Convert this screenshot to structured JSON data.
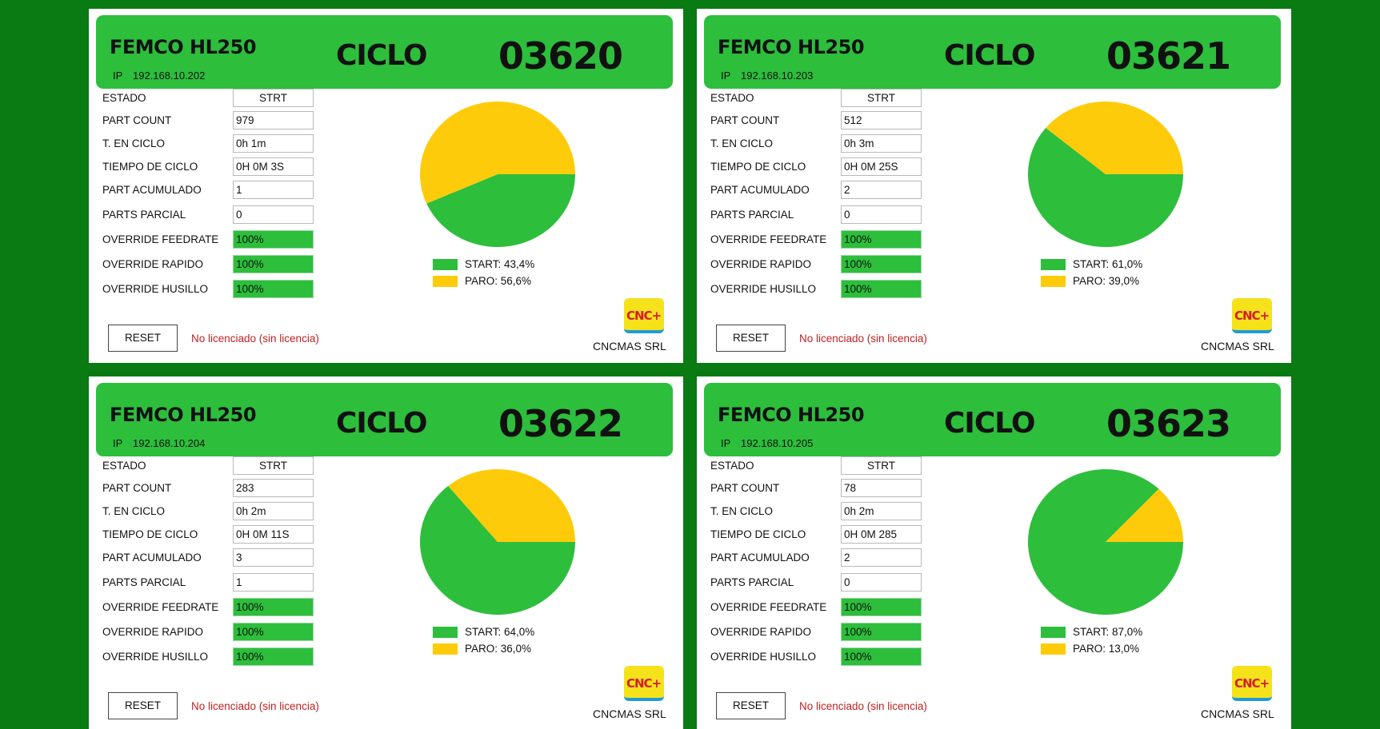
{
  "labels": {
    "estado": "ESTADO",
    "part_count": "PART COUNT",
    "t_en_ciclo": "T. EN CICLO",
    "tiempo_de_ciclo": "TIEMPO DE CICLO",
    "part_acumulado": "PART ACUMULADO",
    "parts_parcial": "PARTS PARCIAL",
    "override_feedrate": "OVERRIDE FEEDRATE",
    "override_rapido": "OVERRIDE RAPIDO",
    "override_husillo": "OVERRIDE HUSILLO",
    "ip": "IP",
    "ciclo": "CICLO",
    "reset": "RESET",
    "license": "No licenciado (sin licencia)",
    "company": "CNCMAS SRL",
    "logo": "CNC+"
  },
  "colors": {
    "background": "#0a7a12",
    "header_green": "#2dbe3c",
    "start_green": "#2dbe3c",
    "paro_yellow": "#fdcb0a",
    "license_red": "#c42020"
  },
  "machines": [
    {
      "name": "FEMCO HL250",
      "ip": "192.168.10.202",
      "ciclo": "03620",
      "estado": "STRT",
      "part_count": "979",
      "t_en_ciclo": "0h 1m",
      "tiempo_de_ciclo": "0H 0M 3S",
      "part_acumulado": "1",
      "parts_parcial": "0",
      "override_feedrate": "100%",
      "override_rapido": "100%",
      "override_husillo": "100%",
      "chart_data": {
        "type": "pie",
        "slices": [
          {
            "label": "START",
            "value": 43.4,
            "color": "#2dbe3c"
          },
          {
            "label": "PARO",
            "value": 56.6,
            "color": "#fdcb0a"
          }
        ],
        "legend": [
          "START: 43,4%",
          "PARO: 56,6%"
        ]
      }
    },
    {
      "name": "FEMCO HL250",
      "ip": "192.168.10.203",
      "ciclo": "03621",
      "estado": "STRT",
      "part_count": "512",
      "t_en_ciclo": "0h 3m",
      "tiempo_de_ciclo": "0H 0M 25S",
      "part_acumulado": "2",
      "parts_parcial": "0",
      "override_feedrate": "100%",
      "override_rapido": "100%",
      "override_husillo": "100%",
      "chart_data": {
        "type": "pie",
        "slices": [
          {
            "label": "START",
            "value": 61.0,
            "color": "#2dbe3c"
          },
          {
            "label": "PARO",
            "value": 39.0,
            "color": "#fdcb0a"
          }
        ],
        "legend": [
          "START: 61,0%",
          "PARO: 39,0%"
        ]
      }
    },
    {
      "name": "FEMCO HL250",
      "ip": "192.168.10.204",
      "ciclo": "03622",
      "estado": "STRT",
      "part_count": "283",
      "t_en_ciclo": "0h 2m",
      "tiempo_de_ciclo": "0H 0M 11S",
      "part_acumulado": "3",
      "parts_parcial": "1",
      "override_feedrate": "100%",
      "override_rapido": "100%",
      "override_husillo": "100%",
      "chart_data": {
        "type": "pie",
        "slices": [
          {
            "label": "START",
            "value": 64.0,
            "color": "#2dbe3c"
          },
          {
            "label": "PARO",
            "value": 36.0,
            "color": "#fdcb0a"
          }
        ],
        "legend": [
          "START: 64,0%",
          "PARO: 36,0%"
        ]
      }
    },
    {
      "name": "FEMCO HL250",
      "ip": "192.168.10.205",
      "ciclo": "03623",
      "estado": "STRT",
      "part_count": "78",
      "t_en_ciclo": "0h 2m",
      "tiempo_de_ciclo": "0H 0M 285",
      "part_acumulado": "2",
      "parts_parcial": "0",
      "override_feedrate": "100%",
      "override_rapido": "100%",
      "override_husillo": "100%",
      "chart_data": {
        "type": "pie",
        "slices": [
          {
            "label": "START",
            "value": 87.0,
            "color": "#2dbe3c"
          },
          {
            "label": "PARO",
            "value": 13.0,
            "color": "#fdcb0a"
          }
        ],
        "legend": [
          "START: 87,0%",
          "PARO: 13,0%"
        ]
      }
    }
  ]
}
